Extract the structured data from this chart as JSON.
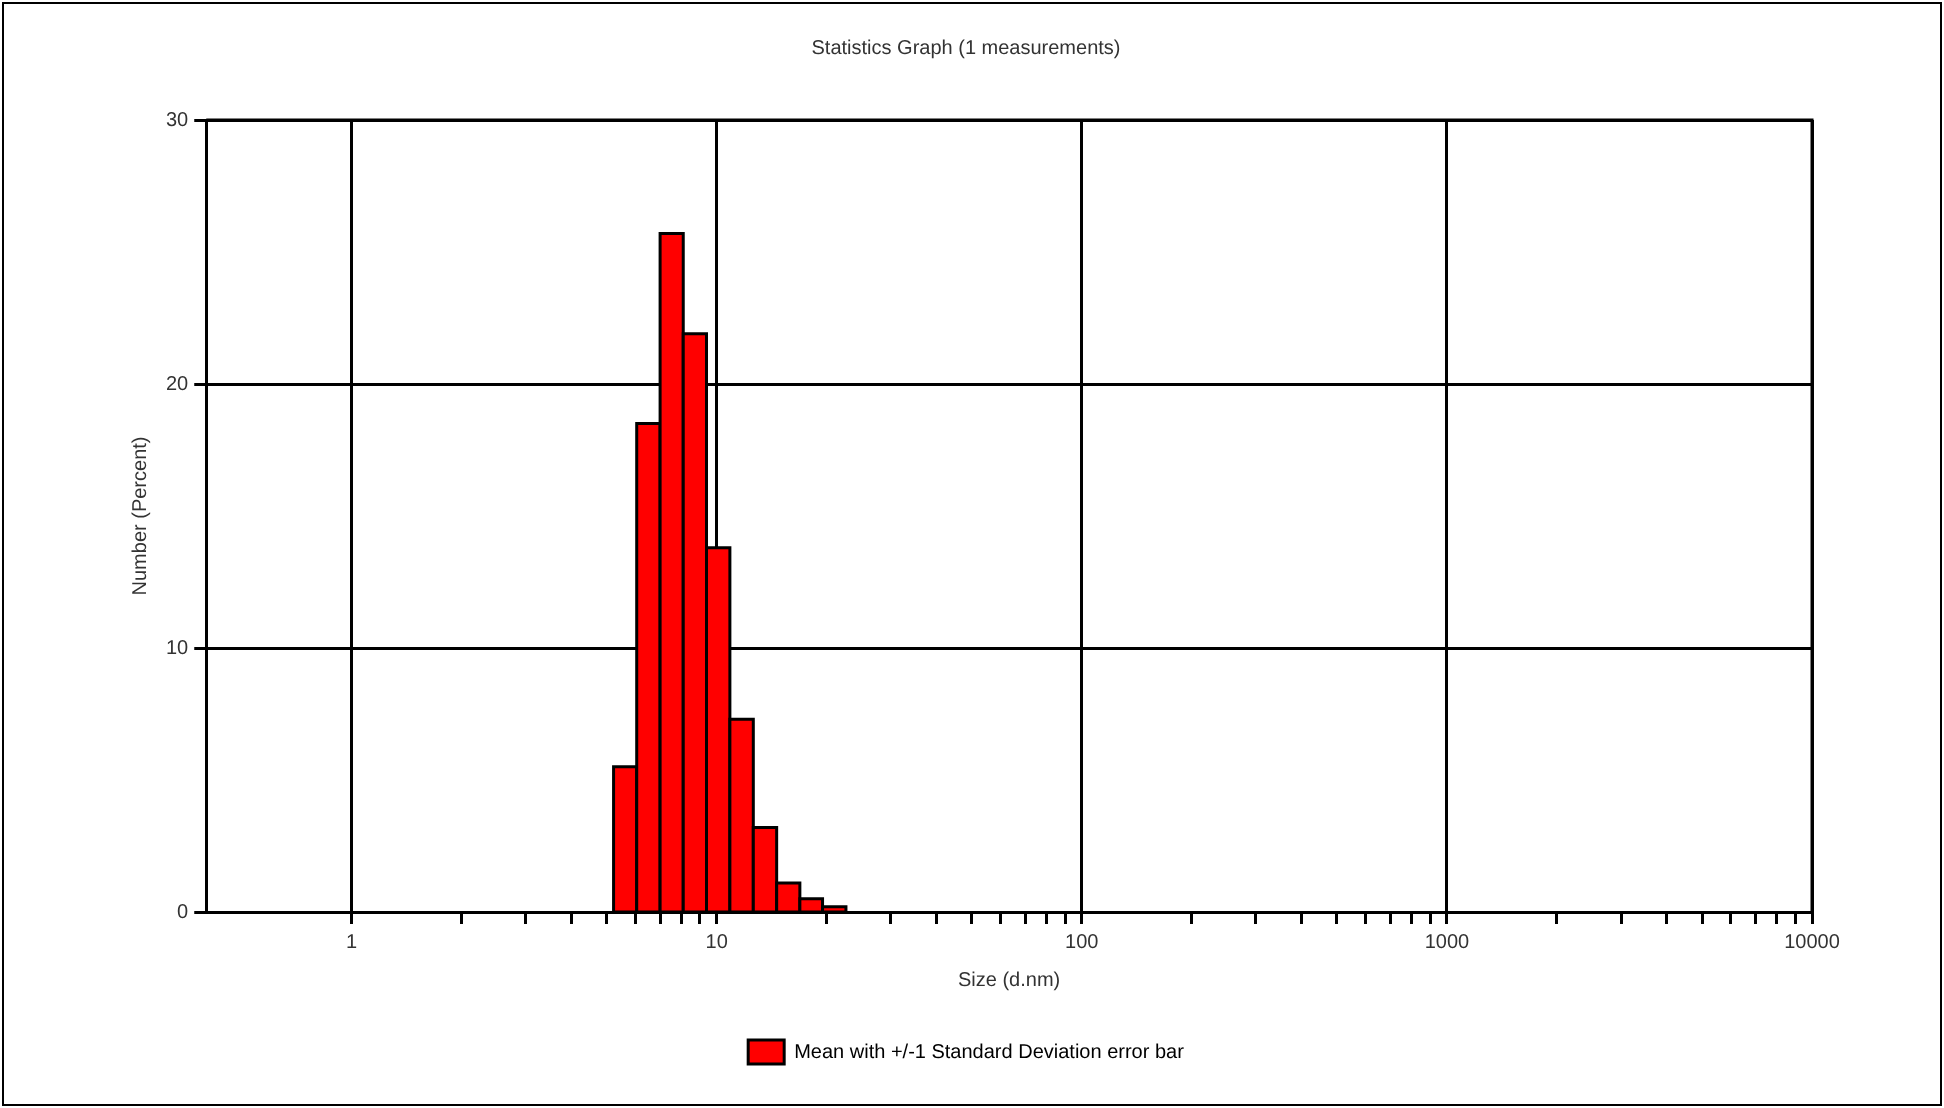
{
  "chart_data": {
    "type": "histogram",
    "title": "Statistics Graph (1 measurements)",
    "xlabel": "Size (d.nm)",
    "ylabel": "Number (Percent)",
    "bins": [
      5.22,
      6.04,
      7.0,
      8.1,
      9.38,
      10.87,
      12.6,
      14.6,
      16.9,
      19.5,
      22.6
    ],
    "series": [
      {
        "name": "Mean with +/-1 Standard Deviation error bar",
        "color": "#ff0000",
        "values": [
          5.5,
          18.5,
          25.7,
          21.9,
          13.8,
          7.3,
          3.2,
          1.1,
          0.5,
          0.2
        ]
      }
    ],
    "log": "x",
    "xlim": [
      0.4,
      10000
    ],
    "xticks": [
      1,
      {
        "value": 2,
        "label": null
      },
      {
        "value": 3,
        "label": null
      },
      {
        "value": 4,
        "label": null
      },
      {
        "value": 5,
        "label": null
      },
      {
        "value": 6,
        "label": null
      },
      {
        "value": 7,
        "label": null
      },
      {
        "value": 8,
        "label": null
      },
      {
        "value": 9,
        "label": null
      },
      10,
      {
        "value": 20,
        "label": null
      },
      {
        "value": 30,
        "label": null
      },
      {
        "value": 40,
        "label": null
      },
      {
        "value": 50,
        "label": null
      },
      {
        "value": 60,
        "label": null
      },
      {
        "value": 70,
        "label": null
      },
      {
        "value": 80,
        "label": null
      },
      {
        "value": 90,
        "label": null
      },
      100,
      {
        "value": 200,
        "label": null
      },
      {
        "value": 300,
        "label": null
      },
      {
        "value": 400,
        "label": null
      },
      {
        "value": 500,
        "label": null
      },
      {
        "value": 600,
        "label": null
      },
      {
        "value": 700,
        "label": null
      },
      {
        "value": 800,
        "label": null
      },
      {
        "value": 900,
        "label": null
      },
      1000,
      {
        "value": 2000,
        "label": null
      },
      {
        "value": 3000,
        "label": null
      },
      {
        "value": 4000,
        "label": null
      },
      {
        "value": 5000,
        "label": null
      },
      {
        "value": 6000,
        "label": null
      },
      {
        "value": 7000,
        "label": null
      },
      {
        "value": 8000,
        "label": null
      },
      {
        "value": 9000,
        "label": null
      },
      10000
    ],
    "ylim": [
      0,
      30
    ],
    "yticks": [
      0,
      10,
      20,
      30
    ],
    "grid": true,
    "legend": "bottom"
  }
}
